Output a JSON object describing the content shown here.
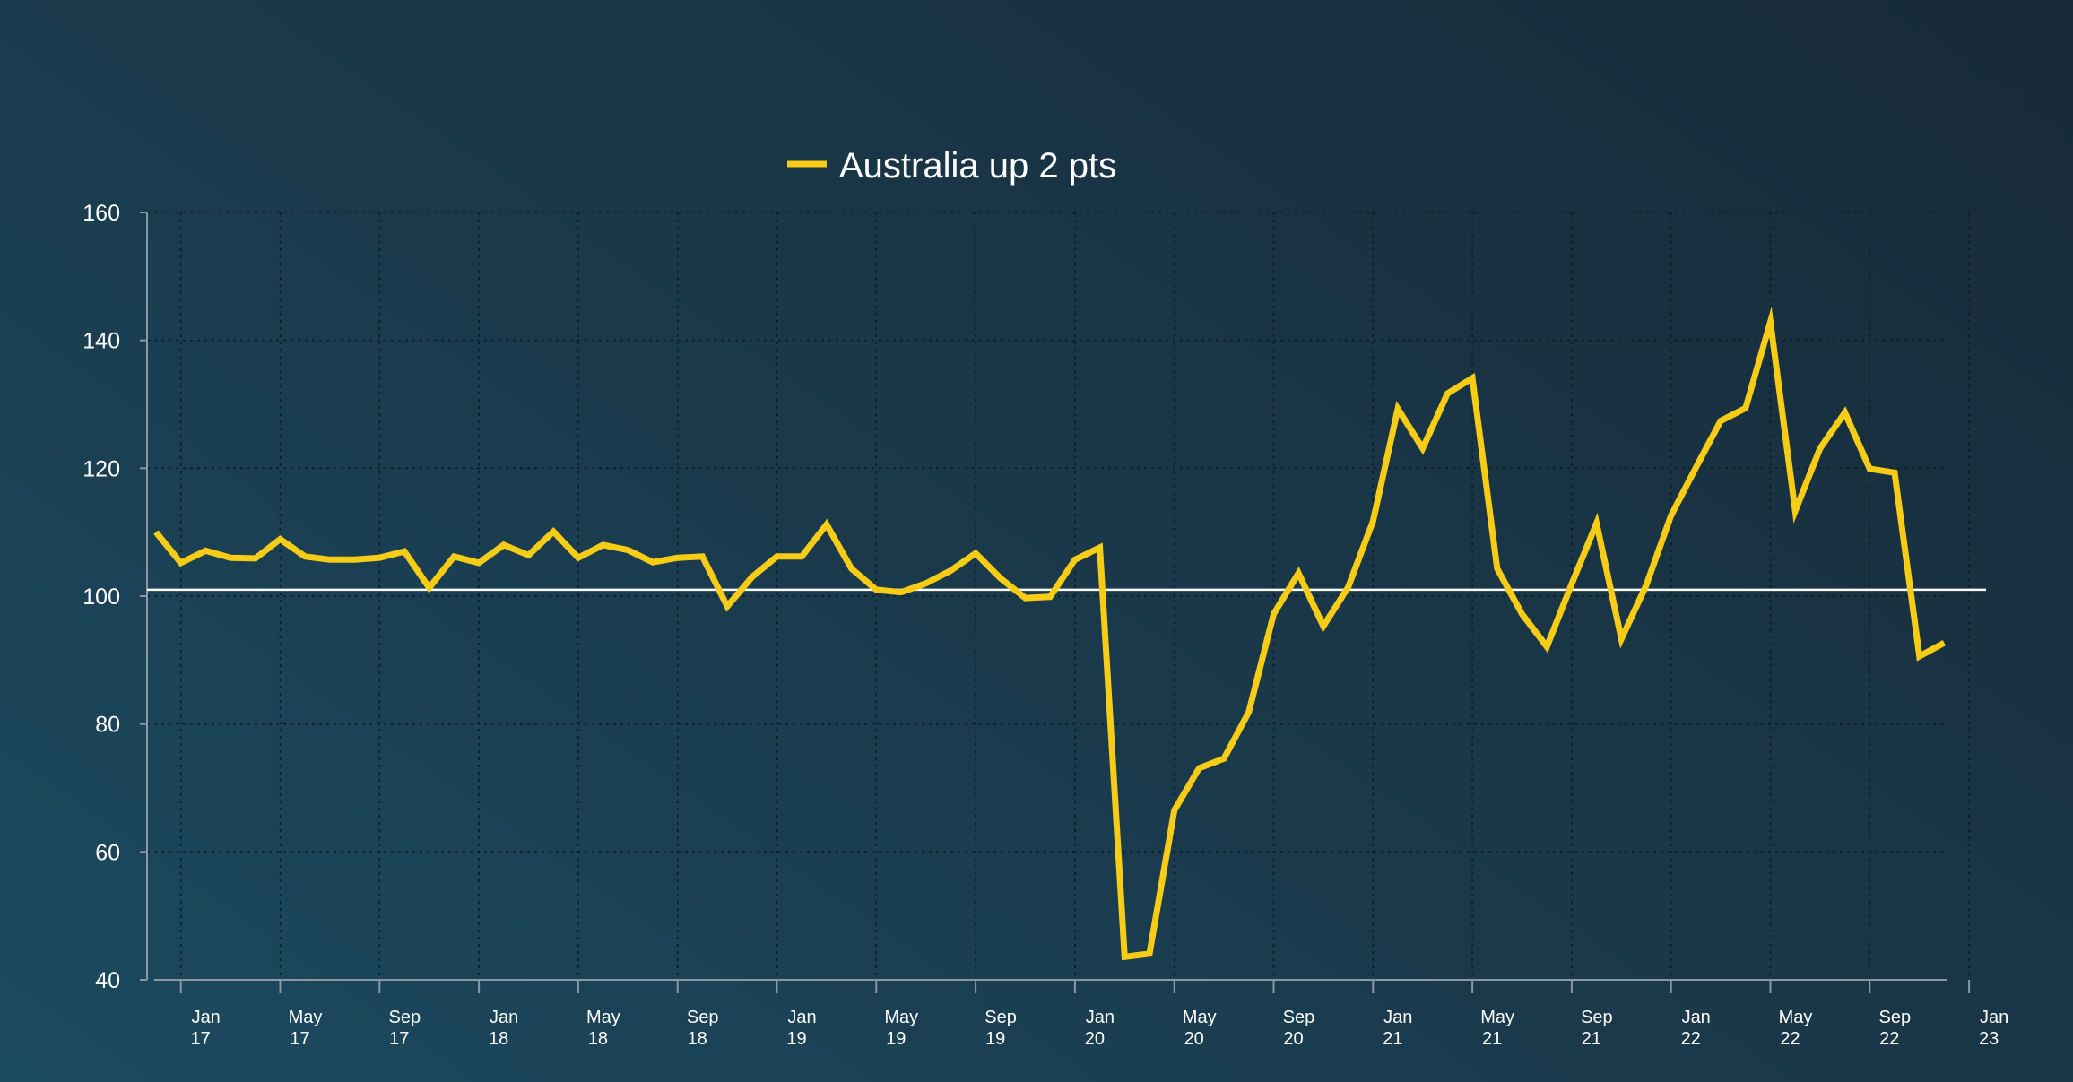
{
  "chart_data": {
    "type": "line",
    "legend": {
      "position": "top-center"
    },
    "grid": true,
    "ylim": [
      40,
      160
    ],
    "yticks": [
      40,
      60,
      80,
      100,
      120,
      140,
      160
    ],
    "reference_line": 101,
    "xlim": [
      "2016-12",
      "2023-01"
    ],
    "xticks": [
      {
        "date": "2017-01",
        "month": "Jan",
        "year": "17"
      },
      {
        "date": "2017-05",
        "month": "May",
        "year": "17"
      },
      {
        "date": "2017-09",
        "month": "Sep",
        "year": "17"
      },
      {
        "date": "2018-01",
        "month": "Jan",
        "year": "18"
      },
      {
        "date": "2018-05",
        "month": "May",
        "year": "18"
      },
      {
        "date": "2018-09",
        "month": "Sep",
        "year": "18"
      },
      {
        "date": "2019-01",
        "month": "Jan",
        "year": "19"
      },
      {
        "date": "2019-05",
        "month": "May",
        "year": "19"
      },
      {
        "date": "2019-09",
        "month": "Sep",
        "year": "19"
      },
      {
        "date": "2020-01",
        "month": "Jan",
        "year": "20"
      },
      {
        "date": "2020-05",
        "month": "May",
        "year": "20"
      },
      {
        "date": "2020-09",
        "month": "Sep",
        "year": "20"
      },
      {
        "date": "2021-01",
        "month": "Jan",
        "year": "21"
      },
      {
        "date": "2021-05",
        "month": "May",
        "year": "21"
      },
      {
        "date": "2021-09",
        "month": "Sep",
        "year": "21"
      },
      {
        "date": "2022-01",
        "month": "Jan",
        "year": "22"
      },
      {
        "date": "2022-05",
        "month": "May",
        "year": "22"
      },
      {
        "date": "2022-09",
        "month": "Sep",
        "year": "22"
      },
      {
        "date": "2023-01",
        "month": "Jan",
        "year": "23"
      }
    ],
    "series": [
      {
        "name": "Australia up 2 pts",
        "color": "#f7cc16",
        "points": [
          [
            "2016-12",
            110
          ],
          [
            "2017-01",
            105.2
          ],
          [
            "2017-02",
            107.1
          ],
          [
            "2017-03",
            106
          ],
          [
            "2017-04",
            105.9
          ],
          [
            "2017-05",
            108.9
          ],
          [
            "2017-06",
            106.2
          ],
          [
            "2017-07",
            105.7
          ],
          [
            "2017-08",
            105.7
          ],
          [
            "2017-09",
            106
          ],
          [
            "2017-10",
            107
          ],
          [
            "2017-11",
            101.3
          ],
          [
            "2017-12",
            106.2
          ],
          [
            "2018-01",
            105.2
          ],
          [
            "2018-02",
            108
          ],
          [
            "2018-03",
            106.4
          ],
          [
            "2018-04",
            110.1
          ],
          [
            "2018-05",
            106
          ],
          [
            "2018-06",
            108
          ],
          [
            "2018-07",
            107.2
          ],
          [
            "2018-08",
            105.3
          ],
          [
            "2018-09",
            106
          ],
          [
            "2018-10",
            106.2
          ],
          [
            "2018-11",
            98.4
          ],
          [
            "2018-12",
            103
          ],
          [
            "2019-01",
            106.2
          ],
          [
            "2019-02",
            106.2
          ],
          [
            "2019-03",
            111.2
          ],
          [
            "2019-04",
            104.3
          ],
          [
            "2019-05",
            101
          ],
          [
            "2019-06",
            100.6
          ],
          [
            "2019-07",
            102
          ],
          [
            "2019-08",
            104
          ],
          [
            "2019-09",
            106.7
          ],
          [
            "2019-10",
            102.8
          ],
          [
            "2019-11",
            99.7
          ],
          [
            "2019-12",
            99.9
          ],
          [
            "2020-01",
            105.7
          ],
          [
            "2020-02",
            107.6
          ],
          [
            "2020-03",
            43.6
          ],
          [
            "2020-04",
            44.1
          ],
          [
            "2020-05",
            66.5
          ],
          [
            "2020-06",
            73.1
          ],
          [
            "2020-07",
            74.6
          ],
          [
            "2020-08",
            81.9
          ],
          [
            "2020-09",
            97.2
          ],
          [
            "2020-10",
            103.6
          ],
          [
            "2020-11",
            95.3
          ],
          [
            "2020-12",
            101.4
          ],
          [
            "2021-01",
            111.7
          ],
          [
            "2021-02",
            129.3
          ],
          [
            "2021-03",
            123.1
          ],
          [
            "2021-04",
            131.7
          ],
          [
            "2021-05",
            134.1
          ],
          [
            "2021-06",
            104.3
          ],
          [
            "2021-07",
            97.2
          ],
          [
            "2021-08",
            92.1
          ],
          [
            "2021-09",
            101.9
          ],
          [
            "2021-10",
            111.4
          ],
          [
            "2021-11",
            93.3
          ],
          [
            "2021-12",
            101.7
          ],
          [
            "2022-01",
            112.6
          ],
          [
            "2022-02",
            120.1
          ],
          [
            "2022-03",
            127.4
          ],
          [
            "2022-04",
            129.4
          ],
          [
            "2022-05",
            142.9
          ],
          [
            "2022-06",
            113.3
          ],
          [
            "2022-07",
            123.1
          ],
          [
            "2022-08",
            128.7
          ],
          [
            "2022-09",
            119.9
          ],
          [
            "2022-10",
            119.3
          ],
          [
            "2022-11",
            90.6
          ],
          [
            "2022-12",
            92.7
          ]
        ]
      }
    ]
  }
}
